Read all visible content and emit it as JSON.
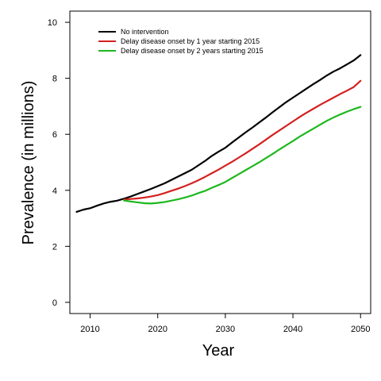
{
  "chart_data": {
    "type": "line",
    "title": "",
    "xlabel": "Year",
    "ylabel": "Prevalence (in millions)",
    "xlim": [
      2007,
      2051.5
    ],
    "ylim": [
      -0.4,
      10.4
    ],
    "xticks": [
      2010,
      2020,
      2030,
      2040,
      2050
    ],
    "yticks": [
      0,
      2,
      4,
      6,
      8,
      10
    ],
    "xtick_labels": [
      "2010",
      "2020",
      "2030",
      "2040",
      "2050"
    ],
    "ytick_labels": [
      "0",
      "2",
      "4",
      "6",
      "8",
      "10"
    ],
    "grid": false,
    "legend_position": "top-left",
    "series": [
      {
        "name": "No intervention",
        "color": "#000000",
        "x": [
          2008,
          2009,
          2010,
          2011,
          2012,
          2013,
          2014,
          2015,
          2016,
          2017,
          2018,
          2019,
          2020,
          2021,
          2022,
          2023,
          2024,
          2025,
          2026,
          2027,
          2028,
          2029,
          2030,
          2031,
          2032,
          2033,
          2034,
          2035,
          2036,
          2037,
          2038,
          2039,
          2040,
          2041,
          2042,
          2043,
          2044,
          2045,
          2046,
          2047,
          2048,
          2049,
          2050
        ],
        "y": [
          3.23,
          3.31,
          3.36,
          3.45,
          3.53,
          3.59,
          3.63,
          3.7,
          3.78,
          3.87,
          3.96,
          4.05,
          4.15,
          4.25,
          4.37,
          4.49,
          4.61,
          4.73,
          4.89,
          5.05,
          5.23,
          5.38,
          5.52,
          5.71,
          5.89,
          6.07,
          6.24,
          6.42,
          6.6,
          6.79,
          6.97,
          7.15,
          7.31,
          7.47,
          7.63,
          7.79,
          7.94,
          8.1,
          8.24,
          8.36,
          8.5,
          8.64,
          8.83
        ]
      },
      {
        "name": "Delay disease onset by 1 year starting 2015",
        "color": "#d42020",
        "x": [
          2015,
          2016,
          2017,
          2018,
          2019,
          2020,
          2021,
          2022,
          2023,
          2024,
          2025,
          2026,
          2027,
          2028,
          2029,
          2030,
          2031,
          2032,
          2033,
          2034,
          2035,
          2036,
          2037,
          2038,
          2039,
          2040,
          2041,
          2042,
          2043,
          2044,
          2045,
          2046,
          2047,
          2048,
          2049,
          2050
        ],
        "y": [
          3.67,
          3.69,
          3.71,
          3.74,
          3.78,
          3.83,
          3.9,
          3.98,
          4.06,
          4.15,
          4.25,
          4.36,
          4.48,
          4.61,
          4.74,
          4.88,
          5.02,
          5.17,
          5.32,
          5.48,
          5.64,
          5.81,
          5.98,
          6.14,
          6.3,
          6.46,
          6.62,
          6.77,
          6.91,
          7.05,
          7.18,
          7.31,
          7.44,
          7.56,
          7.69,
          7.91
        ]
      },
      {
        "name": "Delay disease onset by 2 years starting 2015",
        "color": "#1db81d",
        "x": [
          2015,
          2016,
          2017,
          2018,
          2019,
          2020,
          2021,
          2022,
          2023,
          2024,
          2025,
          2026,
          2027,
          2028,
          2029,
          2030,
          2031,
          2032,
          2033,
          2034,
          2035,
          2036,
          2037,
          2038,
          2039,
          2040,
          2041,
          2042,
          2043,
          2044,
          2045,
          2046,
          2047,
          2048,
          2049,
          2050
        ],
        "y": [
          3.64,
          3.6,
          3.57,
          3.54,
          3.53,
          3.55,
          3.58,
          3.63,
          3.68,
          3.74,
          3.81,
          3.9,
          3.98,
          4.09,
          4.19,
          4.3,
          4.44,
          4.58,
          4.72,
          4.86,
          5.0,
          5.15,
          5.3,
          5.46,
          5.61,
          5.76,
          5.92,
          6.06,
          6.2,
          6.34,
          6.48,
          6.6,
          6.71,
          6.81,
          6.9,
          6.98
        ]
      }
    ]
  }
}
